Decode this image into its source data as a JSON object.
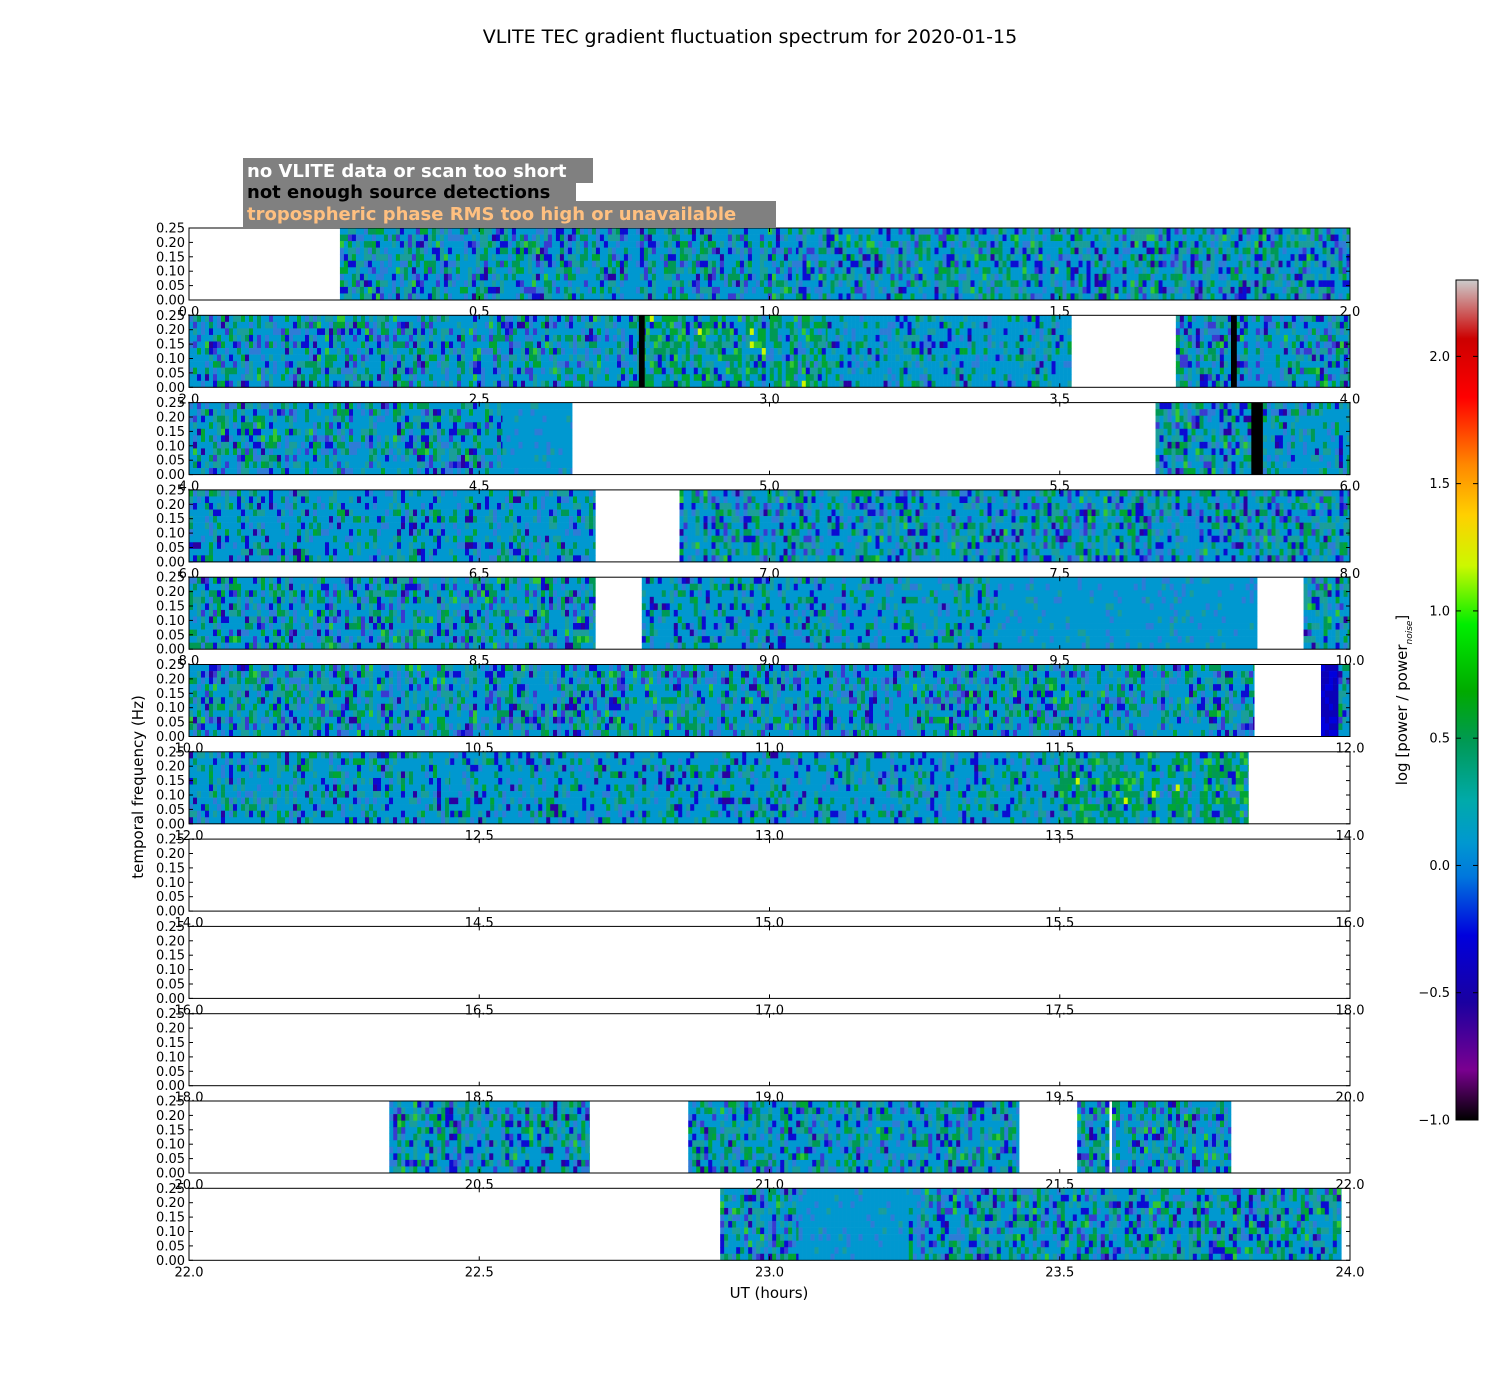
{
  "chart_data": {
    "type": "heatmap",
    "title": "VLITE TEC gradient fluctuation spectrum for 2020-01-15",
    "xlabel": "UT (hours)",
    "ylabel": "temporal frequency (Hz)",
    "ylim": [
      0,
      0.25
    ],
    "yticks": [
      "0.00",
      "0.05",
      "0.10",
      "0.15",
      "0.20",
      "0.25"
    ],
    "colorbar": {
      "label": "log [power / power",
      "label_sub": "noise",
      "label_end": "]",
      "range": [
        -1.0,
        2.3
      ],
      "ticks": [
        "−1.0",
        "−0.5",
        "0.0",
        "0.5",
        "1.0",
        "1.5",
        "2.0"
      ],
      "tick_values": [
        -1.0,
        -0.5,
        0.0,
        0.5,
        1.0,
        1.5,
        2.0
      ],
      "colormap": "spectral"
    },
    "legend": [
      {
        "text": "no VLITE data or scan too short",
        "color": "#ffffff",
        "bg": "#808080"
      },
      {
        "text": "not enough source detections",
        "color": "#000000",
        "bg": "#808080"
      },
      {
        "text": "tropospheric phase RMS too high or unavailable",
        "color": "#ffc080",
        "bg": "#808080"
      }
    ],
    "panels": [
      {
        "xlim": [
          0.0,
          2.0
        ],
        "xticks": [
          "0.0",
          "0.5",
          "1.0",
          "1.5",
          "2.0"
        ],
        "data": [
          [
            0.26,
            1.05,
            "noisy"
          ],
          [
            1.05,
            2.0,
            "noisy"
          ]
        ],
        "black": []
      },
      {
        "xlim": [
          2.0,
          4.0
        ],
        "xticks": [
          "2.0",
          "2.5",
          "3.0",
          "3.5",
          "4.0"
        ],
        "data": [
          [
            2.0,
            2.78,
            "noisy"
          ],
          [
            2.78,
            3.1,
            "greenish"
          ],
          [
            3.1,
            3.52,
            "mixed"
          ],
          [
            3.7,
            4.0,
            "noisy"
          ]
        ],
        "black": [
          [
            2.775,
            2.785
          ],
          [
            3.795,
            3.805
          ]
        ]
      },
      {
        "xlim": [
          4.0,
          6.0
        ],
        "xticks": [
          "4.0",
          "4.5",
          "5.0",
          "5.5",
          "6.0"
        ],
        "data": [
          [
            4.0,
            4.54,
            "noisy"
          ],
          [
            4.54,
            4.66,
            "flat"
          ],
          [
            5.665,
            5.83,
            "noisy"
          ],
          [
            5.85,
            6.0,
            "mixed"
          ]
        ],
        "black": [
          [
            5.83,
            5.85
          ]
        ]
      },
      {
        "xlim": [
          6.0,
          8.0
        ],
        "xticks": [
          "6.0",
          "6.5",
          "7.0",
          "7.5",
          "8.0"
        ],
        "data": [
          [
            6.0,
            6.7,
            "mixed"
          ],
          [
            6.845,
            8.0,
            "noisy"
          ]
        ],
        "black": []
      },
      {
        "xlim": [
          8.0,
          10.0
        ],
        "xticks": [
          "8.0",
          "8.5",
          "9.0",
          "9.5",
          "10.0"
        ],
        "data": [
          [
            8.0,
            8.7,
            "noisy"
          ],
          [
            8.78,
            9.4,
            "mixed"
          ],
          [
            9.4,
            9.84,
            "flat"
          ],
          [
            9.92,
            10.0,
            "noisy"
          ]
        ],
        "black": []
      },
      {
        "xlim": [
          10.0,
          12.0
        ],
        "xticks": [
          "10.0",
          "10.5",
          "11.0",
          "11.5",
          "12.0"
        ],
        "data": [
          [
            10.0,
            11.835,
            "noisy"
          ],
          [
            11.95,
            11.98,
            "darkblue"
          ],
          [
            11.98,
            12.0,
            "noisy"
          ]
        ],
        "black": []
      },
      {
        "xlim": [
          12.0,
          14.0
        ],
        "xticks": [
          "12.0",
          "12.5",
          "13.0",
          "13.5",
          "14.0"
        ],
        "data": [
          [
            12.0,
            12.45,
            "mixed"
          ],
          [
            12.45,
            13.5,
            "mixed"
          ],
          [
            13.5,
            13.825,
            "greenish"
          ]
        ],
        "black": []
      },
      {
        "xlim": [
          14.0,
          16.0
        ],
        "xticks": [
          "14.0",
          "14.5",
          "15.0",
          "15.5",
          "16.0"
        ],
        "data": [],
        "black": []
      },
      {
        "xlim": [
          16.0,
          18.0
        ],
        "xticks": [
          "16.0",
          "16.5",
          "17.0",
          "17.5",
          "18.0"
        ],
        "data": [],
        "black": []
      },
      {
        "xlim": [
          18.0,
          20.0
        ],
        "xticks": [
          "18.0",
          "18.5",
          "19.0",
          "19.5",
          "20.0"
        ],
        "data": [],
        "black": []
      },
      {
        "xlim": [
          20.0,
          22.0
        ],
        "xticks": [
          "20.0",
          "20.5",
          "21.0",
          "21.5",
          "22.0"
        ],
        "data": [
          [
            20.345,
            20.69,
            "noisy"
          ],
          [
            20.86,
            21.43,
            "noisy"
          ],
          [
            21.53,
            21.585,
            "noisy"
          ],
          [
            21.59,
            21.795,
            "noisy"
          ]
        ],
        "black": []
      },
      {
        "xlim": [
          22.0,
          24.0
        ],
        "xticks": [
          "22.0",
          "22.5",
          "23.0",
          "23.5",
          "24.0"
        ],
        "data": [
          [
            22.915,
            23.05,
            "noisy"
          ],
          [
            23.05,
            23.24,
            "flat"
          ],
          [
            23.24,
            23.985,
            "noisy"
          ]
        ],
        "black": []
      }
    ]
  }
}
